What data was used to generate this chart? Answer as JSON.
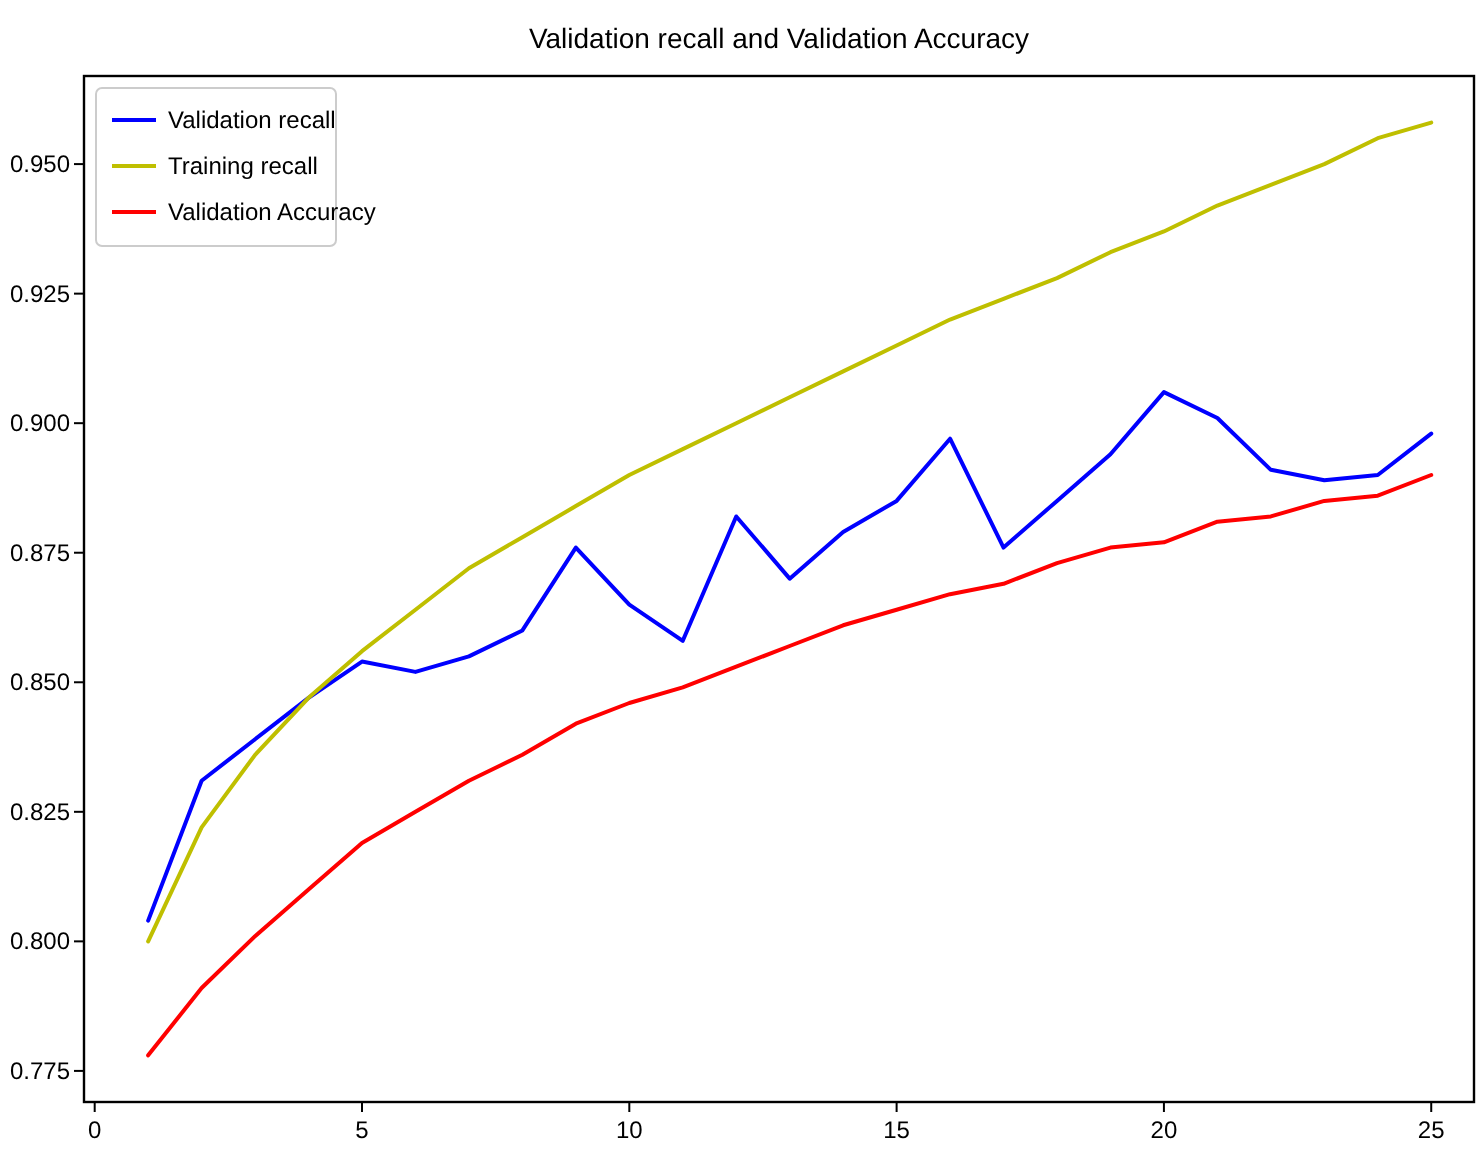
{
  "chart_data": {
    "type": "line",
    "title": "Validation recall and Validation Accuracy",
    "x": [
      1,
      2,
      3,
      4,
      5,
      6,
      7,
      8,
      9,
      10,
      11,
      12,
      13,
      14,
      15,
      16,
      17,
      18,
      19,
      20,
      21,
      22,
      23,
      24,
      25
    ],
    "xlim": [
      -0.2,
      25.8
    ],
    "xticks": [
      0,
      5,
      10,
      15,
      20,
      25
    ],
    "ylim": [
      0.769,
      0.967
    ],
    "yticks": [
      {
        "value": 0.775,
        "label": "0.775"
      },
      {
        "value": 0.8,
        "label": "0.800"
      },
      {
        "value": 0.825,
        "label": "0.825"
      },
      {
        "value": 0.85,
        "label": "0.850"
      },
      {
        "value": 0.875,
        "label": "0.875"
      },
      {
        "value": 0.9,
        "label": "0.900"
      },
      {
        "value": 0.925,
        "label": "0.925"
      },
      {
        "value": 0.95,
        "label": "0.950"
      }
    ],
    "legend": "top left",
    "grid": false,
    "series": [
      {
        "name": "Validation recall",
        "color": "#0000ff",
        "values": [
          0.804,
          0.831,
          0.839,
          0.847,
          0.854,
          0.852,
          0.855,
          0.86,
          0.876,
          0.865,
          0.858,
          0.882,
          0.87,
          0.879,
          0.885,
          0.897,
          0.876,
          0.885,
          0.894,
          0.906,
          0.901,
          0.891,
          0.889,
          0.89,
          0.898
        ]
      },
      {
        "name": "Training recall",
        "color": "#bfbf00",
        "values": [
          0.8,
          0.822,
          0.836,
          0.847,
          0.856,
          0.864,
          0.872,
          0.878,
          0.884,
          0.89,
          0.895,
          0.9,
          0.905,
          0.91,
          0.915,
          0.92,
          0.924,
          0.928,
          0.933,
          0.937,
          0.942,
          0.946,
          0.95,
          0.955,
          0.958
        ]
      },
      {
        "name": "Validation Accuracy",
        "color": "#ff0000",
        "values": [
          0.778,
          0.791,
          0.801,
          0.81,
          0.819,
          0.825,
          0.831,
          0.836,
          0.842,
          0.846,
          0.849,
          0.853,
          0.857,
          0.861,
          0.864,
          0.867,
          0.869,
          0.873,
          0.876,
          0.877,
          0.881,
          0.882,
          0.885,
          0.886,
          0.89
        ]
      }
    ]
  }
}
